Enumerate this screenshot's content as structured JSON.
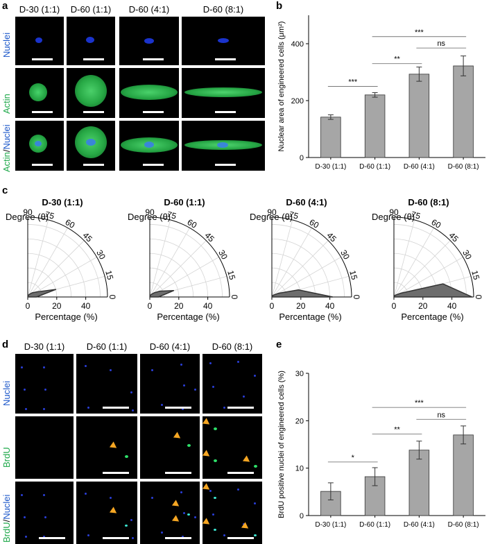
{
  "panel_labels": {
    "a": "a",
    "b": "b",
    "c": "c",
    "d": "d",
    "e": "e"
  },
  "conditions": [
    "D-30 (1:1)",
    "D-60 (1:1)",
    "D-60 (4:1)",
    "D-60 (8:1)"
  ],
  "panel_a": {
    "row_labels": {
      "nuclei": "Nuclei",
      "actin": "Actin",
      "merge_a": "Actin",
      "merge_sep": "/",
      "merge_b": "Nuclei"
    }
  },
  "panel_d": {
    "row_labels": {
      "nuclei": "Nuclei",
      "brdu": "BrdU",
      "merge_a": "BrdU",
      "merge_sep": "/",
      "merge_b": "Nuclei"
    }
  },
  "colors": {
    "nuclei_blue": "#1a33cc",
    "actin_green": "#1ea84a",
    "bar_gray": "#a6a6a6",
    "rose_fill": "#6d6d6d",
    "arrow_orange": "#f5a623"
  },
  "polar_labels": {
    "angle_title": "Degree (θ)",
    "radial_title": "Percentage (%)",
    "angle_ticks": [
      "90",
      "75",
      "60",
      "45",
      "30",
      "15",
      "0"
    ],
    "radial_ticks": [
      "0",
      "20",
      "40"
    ]
  },
  "chart_data": [
    {
      "type": "bar",
      "panel": "b",
      "categories": [
        "D-30 (1:1)",
        "D-60 (1:1)",
        "D-60 (4:1)",
        "D-60 (8:1)"
      ],
      "values": [
        142,
        220,
        293,
        322
      ],
      "errors": [
        8,
        8,
        25,
        35
      ],
      "ylabel": "Nuclear area of engineered cells (μm²)",
      "ylim": [
        0,
        500
      ],
      "yticks": [
        "0",
        "200",
        "400"
      ],
      "significance": [
        {
          "from": 0,
          "to": 1,
          "label": "***",
          "y": 250
        },
        {
          "from": 1,
          "to": 2,
          "label": "**",
          "y": 330
        },
        {
          "from": 1,
          "to": 3,
          "label": "***",
          "y": 425
        },
        {
          "from": 2,
          "to": 3,
          "label": "ns",
          "y": 385
        }
      ]
    },
    {
      "type": "area",
      "panel": "c",
      "subtype": "polar-rose",
      "titles": [
        "D-30 (1:1)",
        "D-60 (1:1)",
        "D-60 (4:1)",
        "D-60 (8:1)"
      ],
      "angles": [
        0,
        15,
        30,
        45,
        60,
        75,
        90
      ],
      "rlim": [
        0,
        55
      ],
      "series": [
        {
          "values": [
            6,
            20,
            7,
            4,
            2,
            1,
            0
          ]
        },
        {
          "values": [
            6,
            17,
            8,
            4,
            2,
            1,
            0
          ]
        },
        {
          "values": [
            42,
            19,
            5,
            2,
            1,
            0,
            0
          ]
        },
        {
          "values": [
            54,
            35,
            5,
            2,
            1,
            0,
            0
          ]
        }
      ]
    },
    {
      "type": "bar",
      "panel": "e",
      "categories": [
        "D-30 (1:1)",
        "D-60 (1:1)",
        "D-60 (4:1)",
        "D-60 (8:1)"
      ],
      "values": [
        5.1,
        8.2,
        13.8,
        17.0
      ],
      "errors": [
        1.8,
        1.9,
        1.9,
        1.9
      ],
      "ylabel": "BrdU positive nuclei of engineered cells (%)",
      "ylim": [
        0,
        30
      ],
      "yticks": [
        "0",
        "10",
        "20",
        "30"
      ],
      "significance": [
        {
          "from": 0,
          "to": 1,
          "label": "*",
          "y": 11.3
        },
        {
          "from": 1,
          "to": 2,
          "label": "**",
          "y": 17.2
        },
        {
          "from": 1,
          "to": 3,
          "label": "***",
          "y": 22.8
        },
        {
          "from": 2,
          "to": 3,
          "label": "ns",
          "y": 20.3
        }
      ]
    }
  ]
}
